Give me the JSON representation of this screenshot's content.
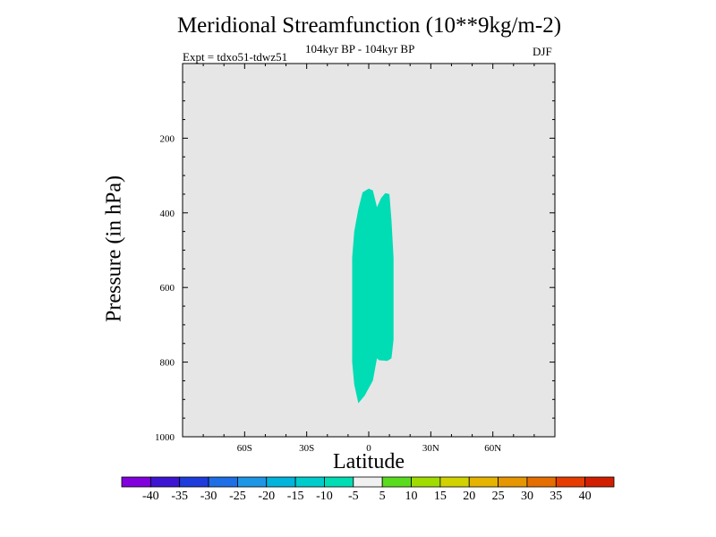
{
  "chart_data": {
    "type": "heatmap",
    "title": "Meridional Streamfunction (10**9kg/m-2)",
    "subtitle": "104kyr BP - 104kyr BP",
    "left_label": "Expt = tdxo51-tdwz51",
    "right_label": "DJF",
    "xlabel": "Latitude",
    "ylabel": "Pressure (in hPa)",
    "xlim": [
      -90,
      90
    ],
    "ylim": [
      1000,
      0
    ],
    "x_ticks": [
      {
        "value": -60,
        "label": "60S"
      },
      {
        "value": -30,
        "label": "30S"
      },
      {
        "value": 0,
        "label": "0"
      },
      {
        "value": 30,
        "label": "30N"
      },
      {
        "value": 60,
        "label": "60N"
      }
    ],
    "y_ticks": [
      {
        "value": 200,
        "label": "200"
      },
      {
        "value": 400,
        "label": "400"
      },
      {
        "value": 600,
        "label": "600"
      },
      {
        "value": 800,
        "label": "800"
      },
      {
        "value": 1000,
        "label": "1000"
      }
    ],
    "background_color": "#e6e6e6",
    "filled_regions": [
      {
        "name": "streamfunction -10 to -5",
        "range": [
          -10,
          -5
        ],
        "color": "#00dcb4",
        "outline": [
          [
            -5,
            910
          ],
          [
            -7,
            860
          ],
          [
            -8,
            800
          ],
          [
            -8,
            720
          ],
          [
            -8,
            620
          ],
          [
            -8,
            520
          ],
          [
            -7,
            450
          ],
          [
            -5,
            390
          ],
          [
            -3,
            345
          ],
          [
            0,
            335
          ],
          [
            2,
            340
          ],
          [
            4,
            385
          ],
          [
            6,
            360
          ],
          [
            8,
            347
          ],
          [
            10,
            350
          ],
          [
            11,
            420
          ],
          [
            12,
            520
          ],
          [
            12,
            640
          ],
          [
            12,
            740
          ],
          [
            11,
            790
          ],
          [
            9,
            797
          ],
          [
            5,
            795
          ],
          [
            4,
            790
          ],
          [
            2,
            850
          ],
          [
            -2,
            890
          ],
          [
            -5,
            910
          ]
        ]
      }
    ],
    "colorbar": {
      "boundaries": [
        -40,
        -35,
        -30,
        -25,
        -20,
        -15,
        -10,
        -5,
        5,
        10,
        15,
        20,
        25,
        30,
        35,
        40
      ],
      "colors": [
        "#8200dc",
        "#3c14d2",
        "#1e3cdc",
        "#1e6ee6",
        "#1e96e6",
        "#00b4dc",
        "#00cccc",
        "#00dcb4",
        "#f0f0f0",
        "#5adc1e",
        "#a0dc00",
        "#d2d200",
        "#e6b400",
        "#e69600",
        "#e66e00",
        "#e63c00",
        "#d21e00"
      ]
    }
  }
}
